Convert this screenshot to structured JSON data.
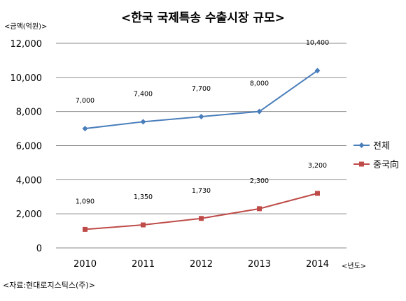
{
  "chart_data": {
    "type": "line",
    "title": "<한국 국제특송 수출시장 규모>",
    "ylabel": "<금액(억원)>",
    "xlabel": "<년도>",
    "source": "<자료:현대로지스틱스(주)>",
    "categories": [
      "2010",
      "2011",
      "2012",
      "2013",
      "2014"
    ],
    "ylim": [
      0,
      12000
    ],
    "yticks": [
      "0",
      "2,000",
      "4,000",
      "6,000",
      "8,000",
      "10,000",
      "12,000"
    ],
    "grid": true,
    "legend_position": "right",
    "series": [
      {
        "name": "전체",
        "values": [
          7000,
          7400,
          7700,
          8000,
          10400
        ],
        "labels": [
          "7,000",
          "7,400",
          "7,700",
          "8,000",
          "10,400"
        ],
        "color": "#4a7ebb",
        "marker": "diamond"
      },
      {
        "name": "중국向",
        "values": [
          1090,
          1350,
          1730,
          2300,
          3200
        ],
        "labels": [
          "1,090",
          "1,350",
          "1,730",
          "2,300",
          "3,200"
        ],
        "color": "#be4b48",
        "marker": "square"
      }
    ]
  }
}
